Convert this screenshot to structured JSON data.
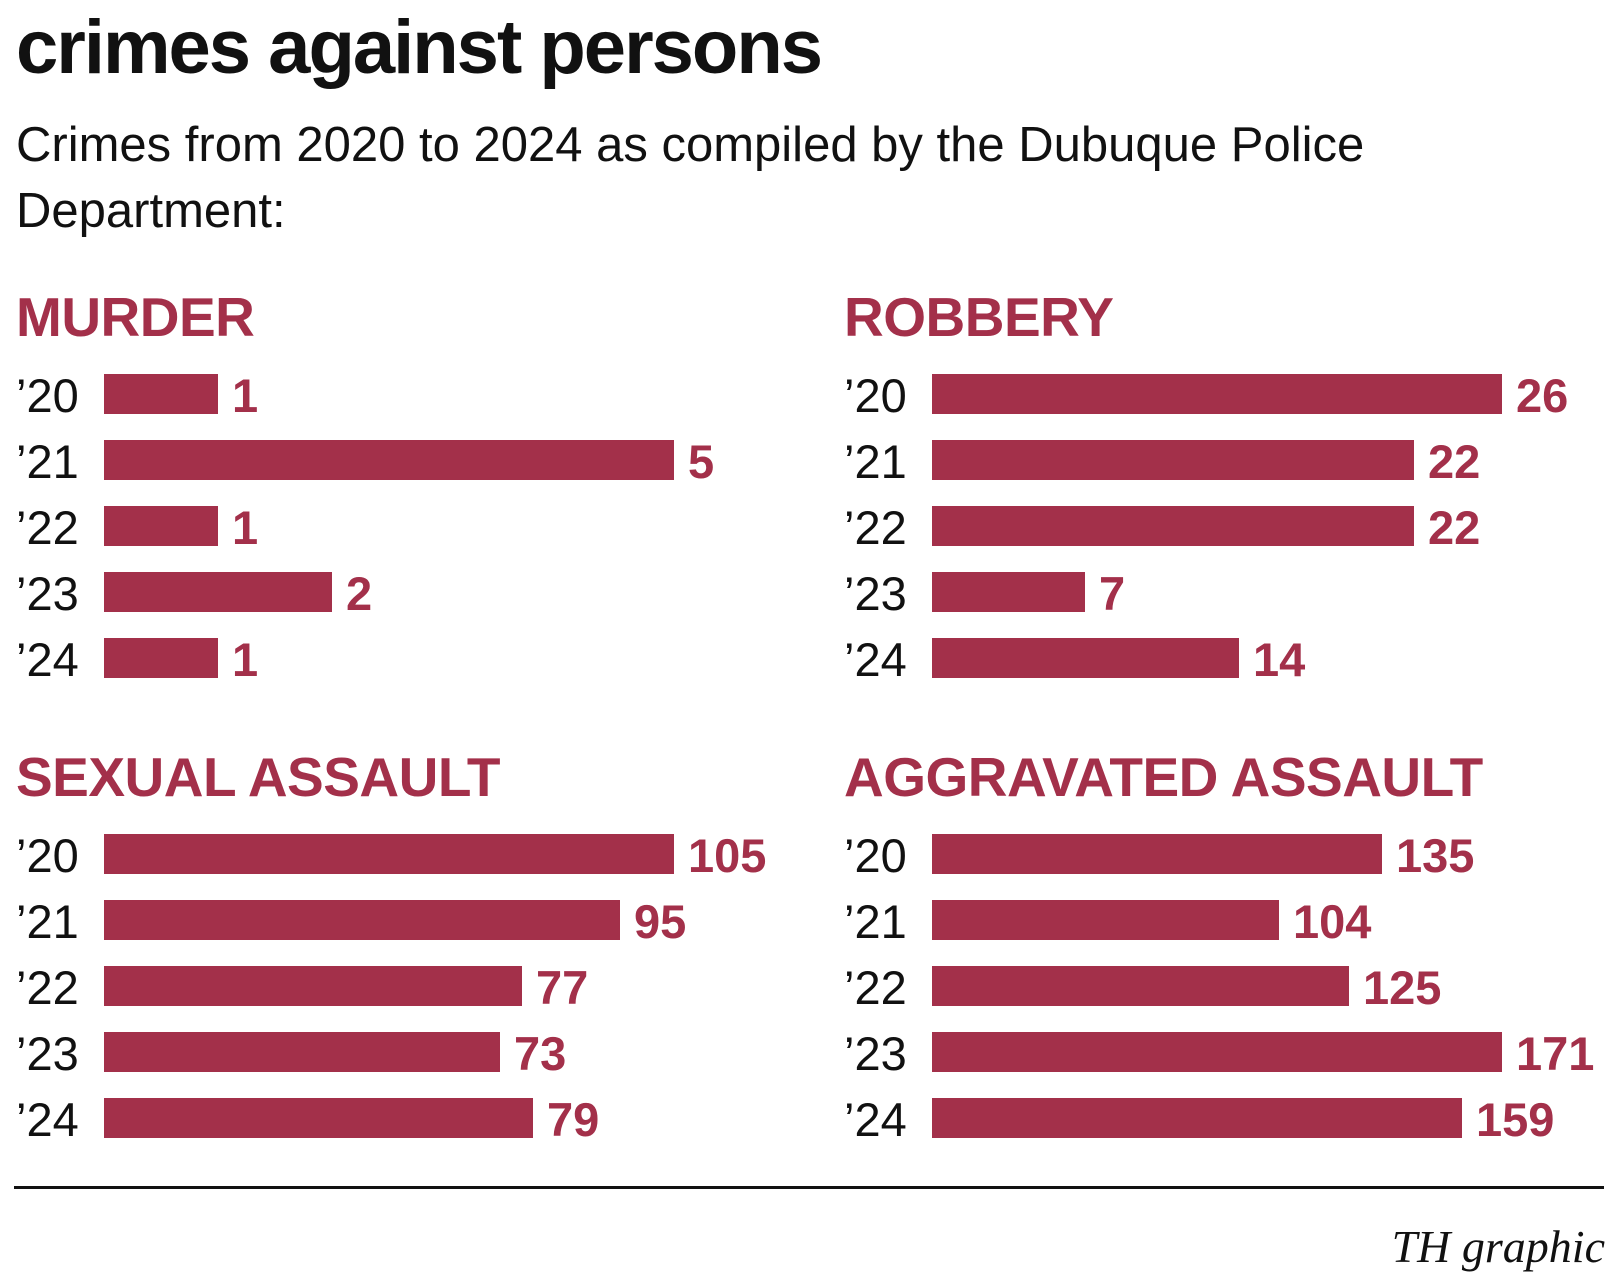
{
  "title": "crimes against persons",
  "subtitle": "Crimes from 2020 to 2024 as compiled by the Dubuque Police Department:",
  "credit": "TH graphic",
  "colors": {
    "bar": "#a3304a",
    "label": "#a3304a",
    "text": "#111111"
  },
  "chart_data": [
    {
      "type": "bar",
      "orientation": "horizontal",
      "title": "MURDER",
      "categories": [
        "’20",
        "’21",
        "’22",
        "’23",
        "’24"
      ],
      "values": [
        1,
        5,
        1,
        2,
        1
      ]
    },
    {
      "type": "bar",
      "orientation": "horizontal",
      "title": "ROBBERY",
      "categories": [
        "’20",
        "’21",
        "’22",
        "’23",
        "’24"
      ],
      "values": [
        26,
        22,
        22,
        7,
        14
      ]
    },
    {
      "type": "bar",
      "orientation": "horizontal",
      "title": "SEXUAL ASSAULT",
      "categories": [
        "’20",
        "’21",
        "’22",
        "’23",
        "’24"
      ],
      "values": [
        105,
        95,
        77,
        73,
        79
      ]
    },
    {
      "type": "bar",
      "orientation": "horizontal",
      "title": "AGGRAVATED ASSAULT",
      "categories": [
        "’20",
        "’21",
        "’22",
        "’23",
        "’24"
      ],
      "values": [
        135,
        104,
        125,
        171,
        159
      ]
    }
  ]
}
